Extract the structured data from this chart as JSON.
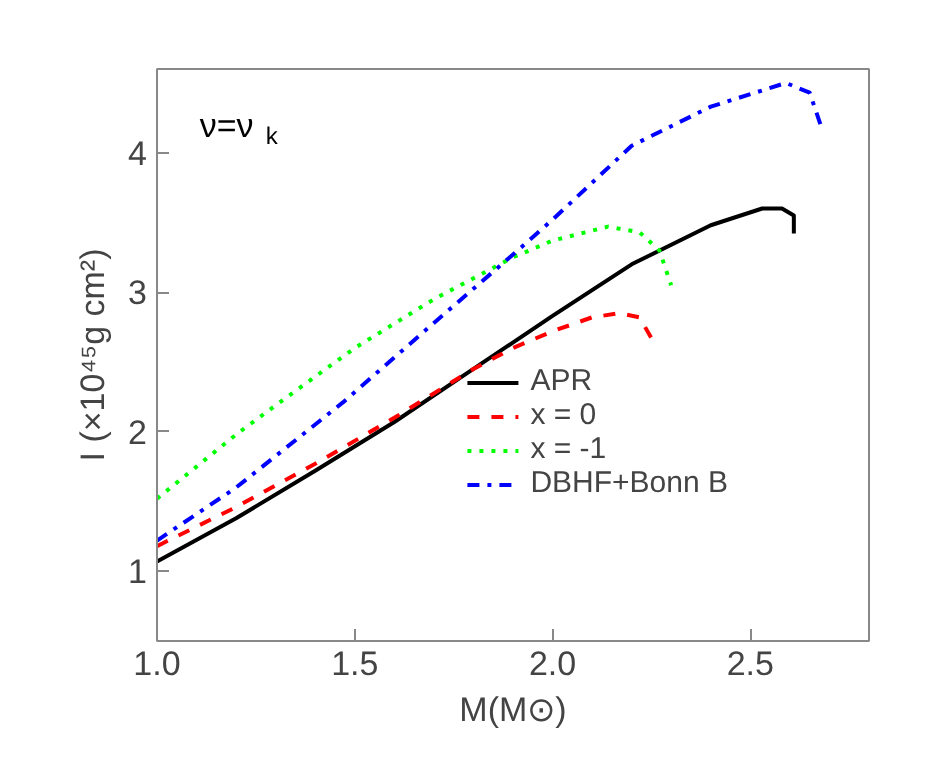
{
  "chart_data": {
    "type": "line",
    "xlabel": "M(M⊙)",
    "ylabel": "I (×10⁴⁵g cm²)",
    "annotations": [
      "ν=ν$_{k}$"
    ],
    "xlim": [
      1.0,
      2.8
    ],
    "ylim": [
      0.5,
      4.6
    ],
    "xticks": [
      {
        "value": 1.0,
        "label": "1.0"
      },
      {
        "value": 1.5,
        "label": "1.5"
      },
      {
        "value": 2.0,
        "label": "2.0"
      },
      {
        "value": 2.5,
        "label": "2.5"
      }
    ],
    "yticks": [
      1,
      2,
      3,
      4
    ],
    "grid": false,
    "legend": "bottom right",
    "series": [
      {
        "name": "APR",
        "color": "#000000",
        "line_style": "solid",
        "x": [
          1.0,
          1.2,
          1.4,
          1.6,
          1.8,
          2.0,
          2.2,
          2.4,
          2.53,
          2.58,
          2.61,
          2.61
        ],
        "values": [
          1.07,
          1.38,
          1.72,
          2.07,
          2.45,
          2.83,
          3.2,
          3.48,
          3.6,
          3.6,
          3.55,
          3.42
        ]
      },
      {
        "name": "x = 0",
        "color": "#ff0000",
        "line_style": "dashed",
        "x": [
          1.0,
          1.2,
          1.4,
          1.6,
          1.8,
          1.9,
          2.0,
          2.1,
          2.17,
          2.22,
          2.25
        ],
        "values": [
          1.18,
          1.46,
          1.77,
          2.1,
          2.45,
          2.6,
          2.72,
          2.82,
          2.85,
          2.82,
          2.67
        ]
      },
      {
        "name": "x = -1",
        "color": "#00ff00",
        "line_style": "dotted",
        "x": [
          1.0,
          1.1,
          1.2,
          1.31,
          1.5,
          1.7,
          1.9,
          2.0,
          2.14,
          2.22,
          2.27,
          2.3
        ],
        "values": [
          1.52,
          1.75,
          1.98,
          2.21,
          2.6,
          2.95,
          3.25,
          3.37,
          3.47,
          3.43,
          3.3,
          3.05
        ]
      },
      {
        "name": "DBHF+Bonn B",
        "color": "#0000ff",
        "line_style": "dashdot",
        "x": [
          1.0,
          1.2,
          1.47,
          1.7,
          1.9,
          2.0,
          2.2,
          2.4,
          2.59,
          2.65,
          2.68
        ],
        "values": [
          1.22,
          1.6,
          2.21,
          2.78,
          3.27,
          3.52,
          4.05,
          4.33,
          4.5,
          4.43,
          4.18
        ]
      }
    ]
  }
}
